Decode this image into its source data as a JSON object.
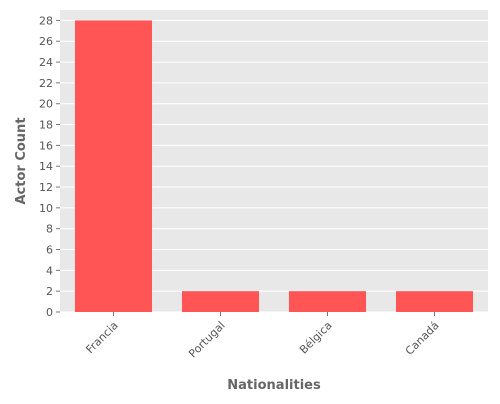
{
  "chart_data": {
    "type": "bar",
    "title": "",
    "xlabel": "Nationalities",
    "ylabel": "Actor Count",
    "categories": [
      "Francia",
      "Portugal",
      "Bélgica",
      "Canadá"
    ],
    "values": [
      28,
      2,
      2,
      2
    ],
    "ylim": [
      0,
      29
    ],
    "yticks": [
      0,
      2,
      4,
      6,
      8,
      10,
      12,
      14,
      16,
      18,
      20,
      22,
      24,
      26,
      28
    ],
    "grid": true,
    "legend": "none",
    "colors": {
      "bar": "#ff5555",
      "plot_background": "#e8e8e8",
      "grid": "#ffffff"
    }
  }
}
